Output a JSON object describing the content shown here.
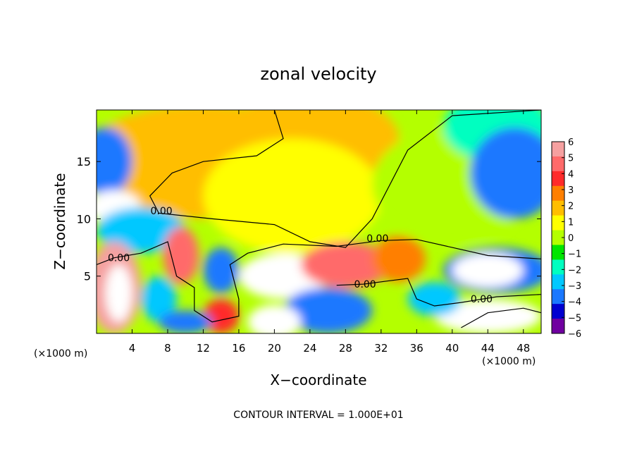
{
  "chart_data": {
    "type": "heatmap",
    "title": "zonal velocity",
    "xlabel": "X−coordinate",
    "ylabel": "Z−coordinate",
    "x_unit_left": "(×1000 m)",
    "x_unit_right": "(×1000 m)",
    "footer": "CONTOUR INTERVAL = 1.000E+01",
    "xlim": [
      0,
      50
    ],
    "ylim": [
      0,
      19.5
    ],
    "x_ticks": [
      "4",
      "8",
      "12",
      "16",
      "20",
      "24",
      "28",
      "32",
      "36",
      "40",
      "44",
      "48"
    ],
    "x_tick_values": [
      4,
      8,
      12,
      16,
      20,
      24,
      28,
      32,
      36,
      40,
      44,
      48
    ],
    "y_ticks": [
      "5",
      "10",
      "15"
    ],
    "y_tick_values": [
      5,
      10,
      15
    ],
    "colorbar": {
      "labels": [
        "6",
        "5",
        "4",
        "3",
        "2",
        "1",
        "0",
        "−1",
        "−2",
        "−3",
        "−4",
        "−5",
        "−6"
      ],
      "values": [
        6,
        5,
        4,
        3,
        2,
        1,
        0,
        -1,
        -2,
        -3,
        -4,
        -5,
        -6
      ],
      "colors": [
        "#f5a0a0",
        "#ff6a6a",
        "#ff2a2a",
        "#ff7f00",
        "#ffbe00",
        "#ffff00",
        "#b4ff00",
        "#00e600",
        "#00ffc0",
        "#00c8ff",
        "#1a78ff",
        "#0000d0",
        "#7000a0"
      ]
    },
    "contour_labels": [
      {
        "text": "0.00",
        "x": 7.3,
        "y": 10.7
      },
      {
        "text": "0.00",
        "x": 2.5,
        "y": 6.6
      },
      {
        "text": "0.00",
        "x": 31.6,
        "y": 8.3
      },
      {
        "text": "0.00",
        "x": 30.2,
        "y": 4.3
      },
      {
        "text": "0.00",
        "x": 43.3,
        "y": 3.0
      }
    ],
    "blobs": [
      {
        "x": 12,
        "y": 15,
        "rx": 14,
        "ry": 5,
        "v": 1.5
      },
      {
        "x": 24,
        "y": 17,
        "rx": 10,
        "ry": 4,
        "v": 2.0
      },
      {
        "x": 22,
        "y": 12,
        "rx": 10,
        "ry": 5,
        "v": 0.8
      },
      {
        "x": 40,
        "y": 13,
        "rx": 9,
        "ry": 5,
        "v": 0.3
      },
      {
        "x": 45,
        "y": 18,
        "rx": 6,
        "ry": 3,
        "v": -2.2
      },
      {
        "x": 1,
        "y": 15,
        "rx": 3,
        "ry": 3,
        "v": -4.5
      },
      {
        "x": 47,
        "y": 14,
        "rx": 5,
        "ry": 4,
        "v": -4.5
      },
      {
        "x": 2,
        "y": 11,
        "rx": 3,
        "ry": 1.5,
        "v": -7
      },
      {
        "x": 5,
        "y": 9,
        "rx": 5,
        "ry": 2,
        "v": -3.5
      },
      {
        "x": 9.5,
        "y": 6.8,
        "rx": 2,
        "ry": 2.5,
        "v": 5
      },
      {
        "x": 14,
        "y": 5.5,
        "rx": 2,
        "ry": 2,
        "v": -4
      },
      {
        "x": 21,
        "y": 5,
        "rx": 5,
        "ry": 2,
        "v": 7
      },
      {
        "x": 28,
        "y": 6,
        "rx": 5,
        "ry": 2,
        "v": 5
      },
      {
        "x": 34,
        "y": 6.5,
        "rx": 3,
        "ry": 2,
        "v": 3
      },
      {
        "x": 2,
        "y": 4,
        "rx": 3,
        "ry": 4,
        "v": 5.5
      },
      {
        "x": 2.5,
        "y": 3.5,
        "rx": 1.5,
        "ry": 2.5,
        "v": 8
      },
      {
        "x": 7,
        "y": 3,
        "rx": 2,
        "ry": 2,
        "v": -3
      },
      {
        "x": 26,
        "y": 2,
        "rx": 5,
        "ry": 2,
        "v": -4
      },
      {
        "x": 20,
        "y": 1,
        "rx": 3,
        "ry": 1.5,
        "v": 7
      },
      {
        "x": 14,
        "y": 1.5,
        "rx": 2,
        "ry": 1.5,
        "v": 4
      },
      {
        "x": 45,
        "y": 5.5,
        "rx": 6,
        "ry": 2,
        "v": -4.5
      },
      {
        "x": 44,
        "y": 5.5,
        "rx": 4,
        "ry": 1.5,
        "v": -8
      },
      {
        "x": 44,
        "y": 1.5,
        "rx": 6,
        "ry": 1.5,
        "v": 7
      },
      {
        "x": 38,
        "y": 3,
        "rx": 3,
        "ry": 1.5,
        "v": -3
      },
      {
        "x": 10,
        "y": 1,
        "rx": 3,
        "ry": 1,
        "v": -4
      }
    ]
  }
}
